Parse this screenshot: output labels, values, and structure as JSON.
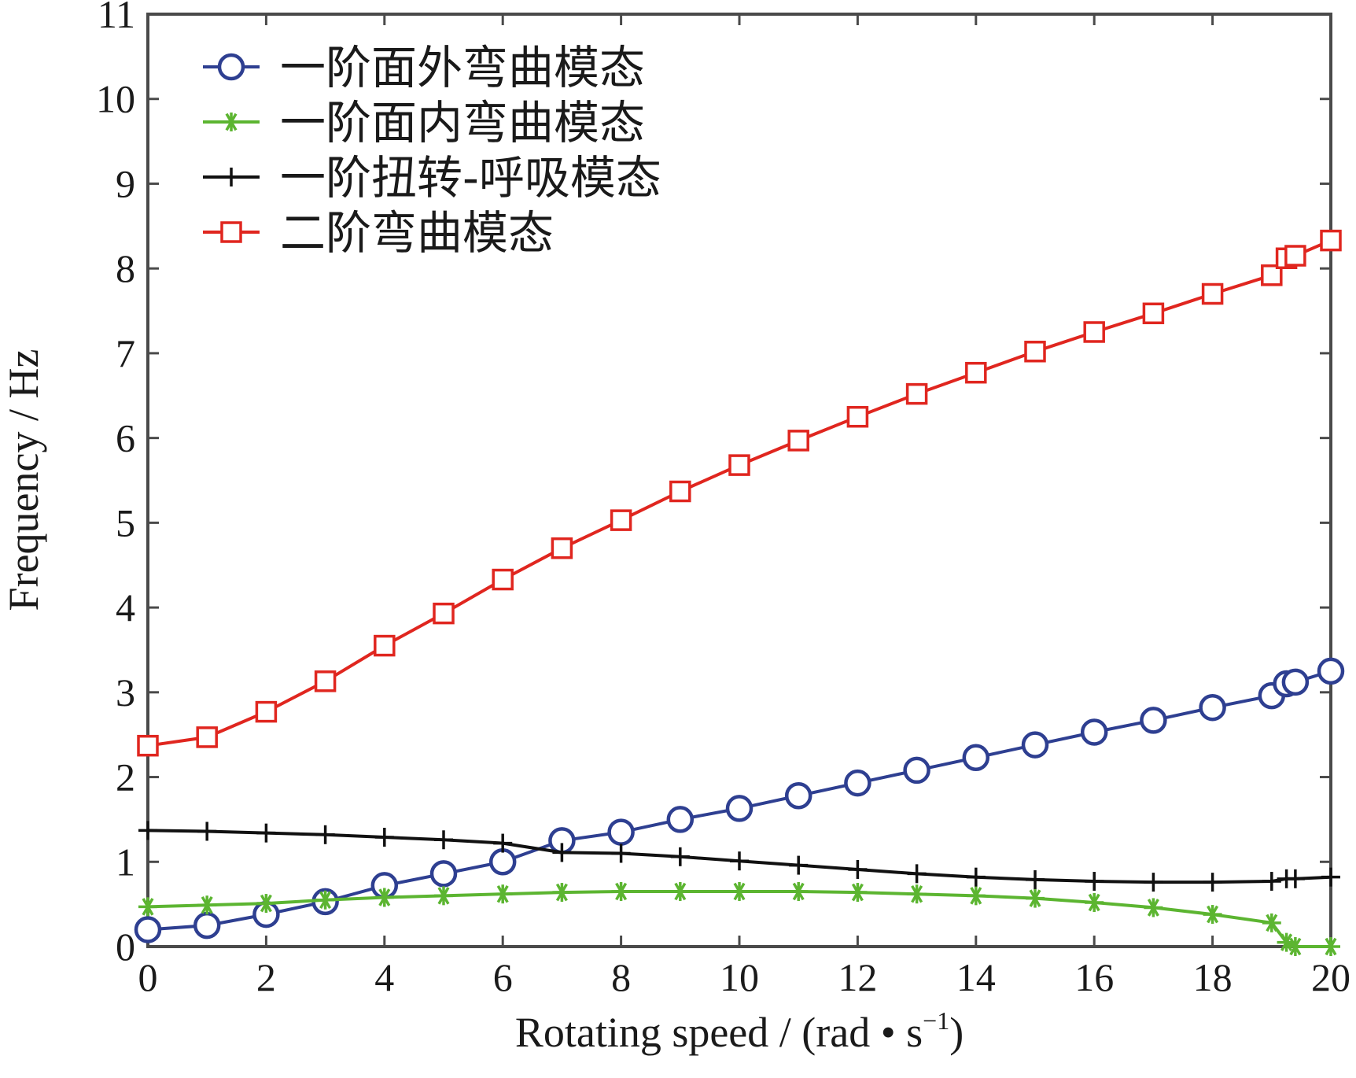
{
  "chart_data": {
    "type": "line",
    "xlabel": "Rotating speed / (rad • s",
    "xlabel_sup": "−1",
    "xlabel_end": ")",
    "ylabel": "Frequency / Hz",
    "xlim": [
      0,
      20
    ],
    "ylim": [
      0,
      11
    ],
    "xticks": [
      0,
      2,
      4,
      6,
      8,
      10,
      12,
      14,
      16,
      18,
      20
    ],
    "yticks": [
      0,
      1,
      2,
      3,
      4,
      5,
      6,
      7,
      8,
      9,
      10,
      11
    ],
    "grid": false,
    "legend_position": "top-left",
    "series": [
      {
        "name": "一阶面外弯曲模态",
        "color": "#2e3f91",
        "marker": "circle",
        "x": [
          0,
          1,
          2,
          3,
          4,
          5,
          6,
          7,
          8,
          9,
          10,
          11,
          12,
          13,
          14,
          15,
          16,
          17,
          18,
          19,
          19.25,
          19.4,
          20
        ],
        "y": [
          0.2,
          0.25,
          0.38,
          0.53,
          0.72,
          0.86,
          1.0,
          1.25,
          1.35,
          1.5,
          1.63,
          1.78,
          1.93,
          2.08,
          2.23,
          2.38,
          2.53,
          2.67,
          2.82,
          2.96,
          3.1,
          3.12,
          3.25
        ]
      },
      {
        "name": "一阶面内弯曲模态",
        "color": "#5cb531",
        "marker": "asterisk",
        "x": [
          0,
          1,
          2,
          3,
          4,
          5,
          6,
          7,
          8,
          9,
          10,
          11,
          12,
          13,
          14,
          15,
          16,
          17,
          18,
          19,
          19.25,
          19.4,
          20
        ],
        "y": [
          0.47,
          0.49,
          0.51,
          0.55,
          0.58,
          0.6,
          0.62,
          0.64,
          0.65,
          0.65,
          0.65,
          0.65,
          0.64,
          0.62,
          0.6,
          0.57,
          0.52,
          0.46,
          0.38,
          0.28,
          0.05,
          0.0,
          0.0
        ]
      },
      {
        "name": "一阶扭转-呼吸模态",
        "color": "#111111",
        "marker": "plus",
        "x": [
          0,
          1,
          2,
          3,
          4,
          5,
          6,
          7,
          8,
          9,
          10,
          11,
          12,
          13,
          14,
          15,
          16,
          17,
          18,
          19,
          19.25,
          19.4,
          20
        ],
        "y": [
          1.37,
          1.36,
          1.34,
          1.32,
          1.29,
          1.26,
          1.22,
          1.11,
          1.1,
          1.06,
          1.01,
          0.96,
          0.91,
          0.86,
          0.82,
          0.79,
          0.77,
          0.76,
          0.76,
          0.77,
          0.8,
          0.8,
          0.82
        ]
      },
      {
        "name": "二阶弯曲模态",
        "color": "#e0261f",
        "marker": "square",
        "x": [
          0,
          1,
          2,
          3,
          4,
          5,
          6,
          7,
          8,
          9,
          10,
          11,
          12,
          13,
          14,
          15,
          16,
          17,
          18,
          19,
          19.25,
          19.4,
          20
        ],
        "y": [
          2.37,
          2.47,
          2.77,
          3.13,
          3.55,
          3.93,
          4.33,
          4.7,
          5.03,
          5.37,
          5.68,
          5.97,
          6.25,
          6.52,
          6.77,
          7.02,
          7.25,
          7.47,
          7.7,
          7.92,
          8.12,
          8.15,
          8.33
        ]
      }
    ]
  }
}
